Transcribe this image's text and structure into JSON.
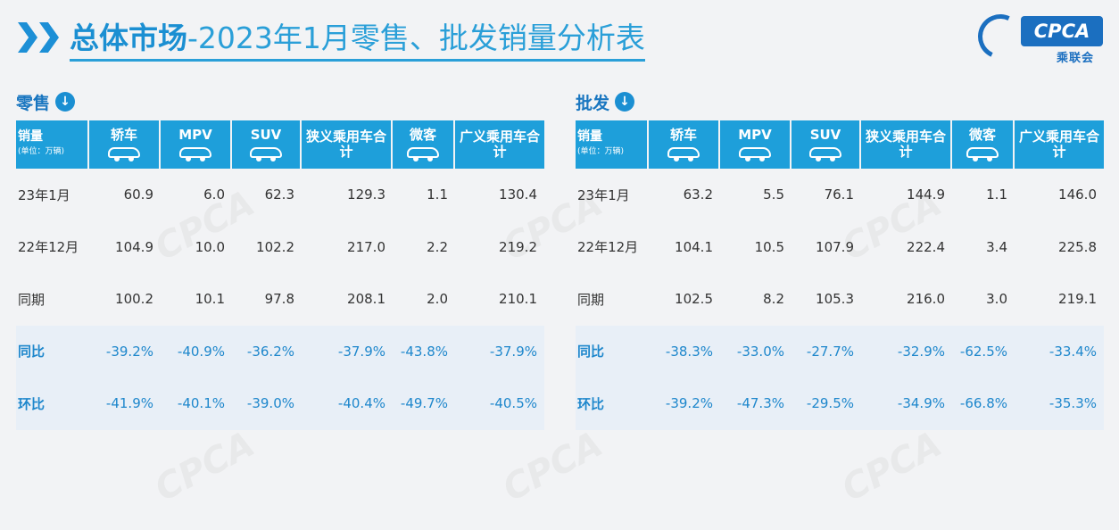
{
  "header": {
    "title_part1": "总体市场",
    "title_part2": "-2023年1月零售、批发销量分析表"
  },
  "logo": {
    "text": "CPCA",
    "sub": "乘联会"
  },
  "colors": {
    "accent": "#1e9fda",
    "title": "#1b8fd2",
    "pct_text": "#1e87cc"
  },
  "corner": {
    "label": "销量",
    "unit": "(单位：万辆)"
  },
  "columns": [
    "轿车",
    "MPV",
    "SUV",
    "狭义乘用车合计",
    "微客",
    "广义乘用车合计"
  ],
  "column_icons": [
    "car-icon",
    "car-icon",
    "car-icon",
    "",
    "car-icon",
    ""
  ],
  "retail": {
    "label": "零售",
    "rows": [
      {
        "label": "23年1月",
        "values": [
          "60.9",
          "6.0",
          "62.3",
          "129.3",
          "1.1",
          "130.4"
        ]
      },
      {
        "label": "22年12月",
        "values": [
          "104.9",
          "10.0",
          "102.2",
          "217.0",
          "2.2",
          "219.2"
        ]
      },
      {
        "label": "同期",
        "values": [
          "100.2",
          "10.1",
          "97.8",
          "208.1",
          "2.0",
          "210.1"
        ]
      },
      {
        "label": "同比",
        "values": [
          "-39.2%",
          "-40.9%",
          "-36.2%",
          "-37.9%",
          "-43.8%",
          "-37.9%"
        ]
      },
      {
        "label": "环比",
        "values": [
          "-41.9%",
          "-40.1%",
          "-39.0%",
          "-40.4%",
          "-49.7%",
          "-40.5%"
        ]
      }
    ]
  },
  "wholesale": {
    "label": "批发",
    "rows": [
      {
        "label": "23年1月",
        "values": [
          "63.2",
          "5.5",
          "76.1",
          "144.9",
          "1.1",
          "146.0"
        ]
      },
      {
        "label": "22年12月",
        "values": [
          "104.1",
          "10.5",
          "107.9",
          "222.4",
          "3.4",
          "225.8"
        ]
      },
      {
        "label": "同期",
        "values": [
          "102.5",
          "8.2",
          "105.3",
          "216.0",
          "3.0",
          "219.1"
        ]
      },
      {
        "label": "同比",
        "values": [
          "-38.3%",
          "-33.0%",
          "-27.7%",
          "-32.9%",
          "-62.5%",
          "-33.4%"
        ]
      },
      {
        "label": "环比",
        "values": [
          "-39.2%",
          "-47.3%",
          "-29.5%",
          "-34.9%",
          "-66.8%",
          "-35.3%"
        ]
      }
    ]
  }
}
